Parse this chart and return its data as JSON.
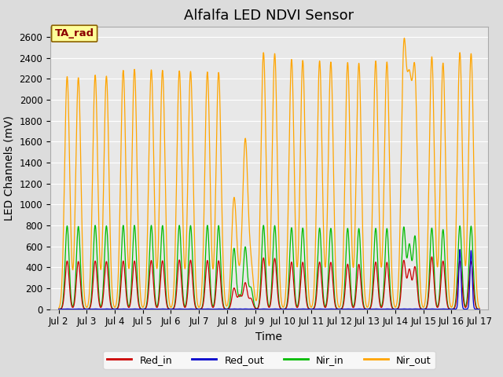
{
  "title": "Alfalfa LED NDVI Sensor",
  "xlabel": "Time",
  "ylabel": "LED Channels (mV)",
  "ylim": [
    0,
    2700
  ],
  "annotation_text": "TA_rad",
  "annotation_color": "#8B0000",
  "annotation_bg": "#FFFF99",
  "annotation_border": "#8B6000",
  "colors": {
    "Red_in": "#CC0000",
    "Red_out": "#0000CC",
    "Nir_in": "#00BB00",
    "Nir_out": "#FFA500"
  },
  "background_color": "#DCDCDC",
  "plot_bg": "#E8E8E8",
  "grid_color": "#FFFFFF",
  "xtick_labels": [
    "Jul 2",
    "Jul 3",
    "Jul 4",
    "Jul 5",
    "Jul 6",
    "Jul 7",
    "Jul 8",
    "Jul 9",
    "Jul 10",
    "Jul 11",
    "Jul 12",
    "Jul 13",
    "Jul 14",
    "Jul 15",
    "Jul 16",
    "Jul 17"
  ],
  "title_fontsize": 13,
  "axis_label_fontsize": 10,
  "tick_fontsize": 8.5,
  "legend_fontsize": 9
}
